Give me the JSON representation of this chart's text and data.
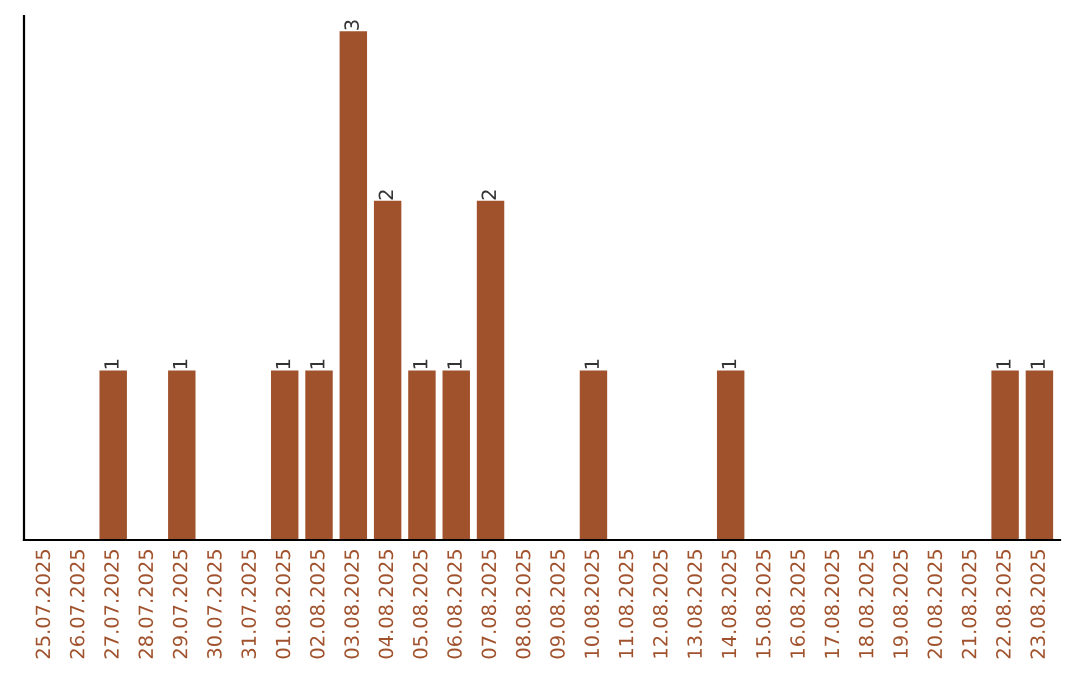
{
  "chart_data": {
    "type": "bar",
    "categories": [
      "25.07.2025",
      "26.07.2025",
      "27.07.2025",
      "28.07.2025",
      "29.07.2025",
      "30.07.2025",
      "31.07.2025",
      "01.08.2025",
      "02.08.2025",
      "03.08.2025",
      "04.08.2025",
      "05.08.2025",
      "06.08.2025",
      "07.08.2025",
      "08.08.2025",
      "09.08.2025",
      "10.08.2025",
      "11.08.2025",
      "12.08.2025",
      "13.08.2025",
      "14.08.2025",
      "15.08.2025",
      "16.08.2025",
      "17.08.2025",
      "18.08.2025",
      "19.08.2025",
      "20.08.2025",
      "21.08.2025",
      "22.08.2025",
      "23.08.2025"
    ],
    "values": [
      0,
      0,
      1,
      0,
      1,
      0,
      0,
      1,
      1,
      3,
      2,
      1,
      1,
      2,
      0,
      0,
      1,
      0,
      0,
      0,
      1,
      0,
      0,
      0,
      0,
      0,
      0,
      0,
      1,
      1
    ],
    "value_labels": [
      null,
      null,
      "1",
      null,
      "1",
      null,
      null,
      "1",
      "1",
      "3",
      "2",
      "1",
      "1",
      "2",
      null,
      null,
      "1",
      null,
      null,
      null,
      "1",
      null,
      null,
      null,
      null,
      null,
      null,
      null,
      "1",
      "1"
    ],
    "color": "#a0522d",
    "tick_labels": "x",
    "grid": false,
    "legend": false
  }
}
